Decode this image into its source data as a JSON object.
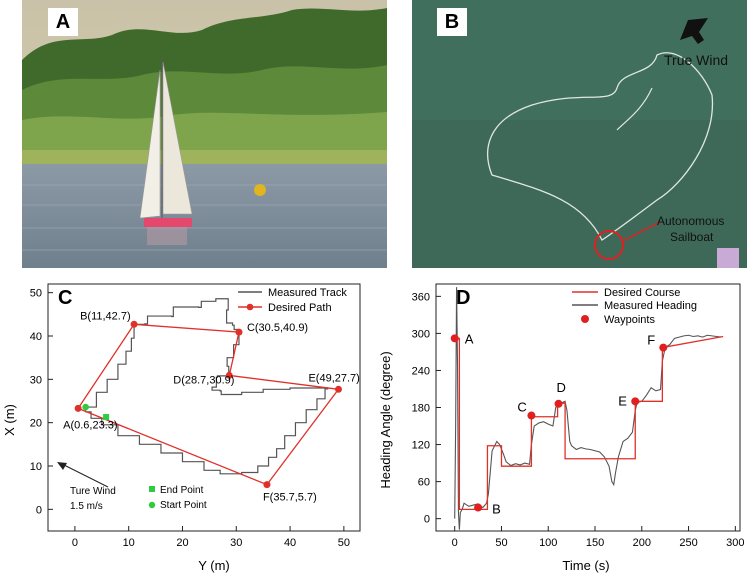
{
  "figure": {
    "panels": [
      "A",
      "B",
      "C",
      "D"
    ],
    "panel_b": {
      "wind_label": "True Wind",
      "boat_label_line1": "Autonomous",
      "boat_label_line2": "Sailboat"
    },
    "colors": {
      "red": "#e0302a",
      "dark": "#555555",
      "green": "#2ecc40",
      "water_a": "#7d8fa0",
      "water_b": "#3d6b5a"
    }
  },
  "chart_data": [
    {
      "type": "line",
      "title": "",
      "xlabel": "Y (m)",
      "ylabel": "X (m)",
      "xlim": [
        -5,
        53
      ],
      "ylim": [
        -5,
        52
      ],
      "xticks": [
        0,
        10,
        20,
        30,
        40,
        50
      ],
      "yticks": [
        0,
        10,
        20,
        30,
        40,
        50
      ],
      "legend": {
        "position": "top-right",
        "entries": [
          "Measured Track",
          "Desired Path"
        ]
      },
      "waypoints": [
        {
          "label": "A(0.6,23.3)",
          "x": 0.6,
          "y": 23.3
        },
        {
          "label": "B(11,42.7)",
          "x": 11,
          "y": 42.7
        },
        {
          "label": "C(30.5,40.9)",
          "x": 30.5,
          "y": 40.9
        },
        {
          "label": "D(28.7,30.9)",
          "x": 28.7,
          "y": 30.9
        },
        {
          "label": "E(49,27.7)",
          "x": 49,
          "y": 27.7
        },
        {
          "label": "F(35.7,5.7)",
          "x": 35.7,
          "y": 5.7
        }
      ],
      "desired_path": {
        "name": "Desired Path",
        "x": [
          0.6,
          11,
          30.5,
          28.7,
          49,
          35.7,
          0.6
        ],
        "y": [
          23.3,
          42.7,
          40.9,
          30.9,
          27.7,
          5.7,
          23.3
        ]
      },
      "measured_track": {
        "name": "Measured Track",
        "x": [
          2,
          4,
          6,
          8,
          9.5,
          10.5,
          11,
          13,
          13.5,
          18,
          18.3,
          23,
          23.5,
          26,
          26.2,
          28.5,
          28.5,
          28.2,
          28.2,
          29.3,
          29.6,
          30.5,
          30.5,
          29.5,
          28.3,
          28.6,
          28.7,
          26.5,
          26.3,
          25.5,
          27,
          27.2,
          31,
          35,
          40,
          44,
          47,
          46.5,
          45,
          43,
          41,
          39,
          37.5,
          36,
          34,
          31,
          27,
          24,
          20,
          16,
          12,
          8,
          5,
          3,
          2
        ],
        "y": [
          23.6,
          27,
          30,
          33.5,
          36.5,
          39.5,
          42.7,
          42.8,
          44.6,
          44.5,
          46.7,
          46.6,
          48,
          48,
          48.6,
          48.5,
          46,
          45,
          43,
          42.5,
          41.5,
          41,
          38,
          35,
          33,
          31,
          30.8,
          30.5,
          28.2,
          27.5,
          27.3,
          26.5,
          27,
          27.7,
          28,
          28,
          27.8,
          25.5,
          23,
          20,
          17,
          14,
          12,
          10,
          8.5,
          8.2,
          9,
          11,
          13,
          15,
          17,
          19.5,
          21,
          22.5,
          23.6
        ]
      },
      "markers": {
        "end_point": {
          "label": "End Point",
          "x": 5.8,
          "y": 21.3
        },
        "start_point": {
          "label": "Start Point",
          "x": 2,
          "y": 23.6
        }
      },
      "annotation": {
        "line1": "Ture Wind",
        "line2": "1.5 m/s"
      }
    },
    {
      "type": "line",
      "title": "",
      "xlabel": "Time (s)",
      "ylabel": "Heading Angle (degree)",
      "xlim": [
        -20,
        305
      ],
      "ylim": [
        -20,
        380
      ],
      "xticks": [
        0,
        50,
        100,
        150,
        200,
        250,
        300
      ],
      "yticks": [
        0,
        60,
        120,
        180,
        240,
        300,
        360
      ],
      "legend": {
        "position": "top-right",
        "entries": [
          "Desired Course",
          "Measured Heading",
          "Waypoints"
        ]
      },
      "desired_course": {
        "name": "Desired Course",
        "x": [
          0,
          5,
          5,
          35,
          35,
          50,
          50,
          82,
          82,
          110,
          110,
          118,
          118,
          193,
          193,
          222,
          222,
          287
        ],
        "y": [
          292,
          292,
          15,
          15,
          118,
          118,
          85,
          85,
          165,
          165,
          187,
          187,
          97,
          97,
          190,
          190,
          277,
          295
        ]
      },
      "measured_heading": {
        "name": "Measured Heading",
        "x": [
          0,
          1,
          2,
          3,
          4,
          5,
          6,
          8,
          10,
          15,
          20,
          25,
          30,
          34,
          36,
          40,
          45,
          48,
          52,
          55,
          60,
          65,
          70,
          75,
          80,
          82,
          85,
          90,
          95,
          100,
          105,
          108,
          112,
          115,
          118,
          120,
          123,
          125,
          130,
          135,
          140,
          145,
          150,
          155,
          160,
          165,
          168,
          170,
          172,
          175,
          180,
          185,
          190,
          193,
          195,
          200,
          205,
          210,
          215,
          220,
          222,
          225,
          230,
          235,
          240,
          245,
          250,
          255,
          260,
          265,
          270,
          275,
          280,
          285
        ],
        "y": [
          0,
          150,
          375,
          250,
          10,
          -18,
          10,
          15,
          25,
          20,
          22,
          24,
          18,
          25,
          40,
          110,
          125,
          120,
          105,
          92,
          86,
          89,
          87,
          90,
          88,
          120,
          150,
          155,
          157,
          153,
          150,
          180,
          187,
          188,
          190,
          175,
          125,
          118,
          112,
          115,
          113,
          112,
          110,
          108,
          100,
          85,
          60,
          55,
          75,
          100,
          125,
          130,
          140,
          175,
          188,
          190,
          200,
          212,
          207,
          209,
          255,
          277,
          282,
          292,
          294,
          296,
          297,
          295,
          296,
          294,
          297,
          296,
          295,
          294
        ]
      },
      "waypoints": [
        {
          "label": "A",
          "x": 0,
          "y": 292
        },
        {
          "label": "B",
          "x": 25,
          "y": 18
        },
        {
          "label": "C",
          "x": 82,
          "y": 167
        },
        {
          "label": "D",
          "x": 111,
          "y": 186
        },
        {
          "label": "E",
          "x": 193,
          "y": 190
        },
        {
          "label": "F",
          "x": 223,
          "y": 277
        }
      ]
    }
  ]
}
